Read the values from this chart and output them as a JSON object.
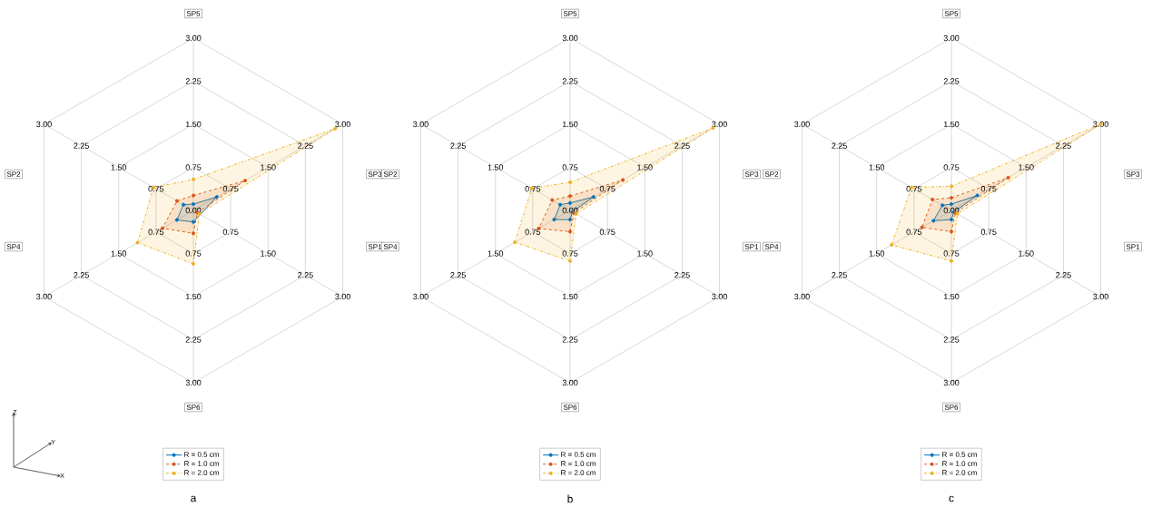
{
  "chart_data": [
    {
      "type": "radar",
      "title": "a",
      "categories": [
        "SP5",
        "SP3",
        "SP1",
        "SP6",
        "SP4",
        "SP2"
      ],
      "ylim": [
        0,
        3
      ],
      "yticks": [
        {
          "value": 0,
          "label": "0.00"
        },
        {
          "value": 0.75,
          "label": "0.75"
        },
        {
          "value": 1.5,
          "label": "1.50"
        },
        {
          "value": 2.25,
          "label": "2.25"
        },
        {
          "value": 3,
          "label": "3.00"
        }
      ],
      "grid": true,
      "legend": "bottom",
      "marker": "circle",
      "annotations": [
        "Z",
        "Y",
        "X"
      ],
      "series": [
        {
          "name": "R = 0.5 cm",
          "color": "#0072bd",
          "line_style": "solid",
          "values": [
            0.11,
            0.47,
            null,
            0.2,
            0.33,
            0.2
          ]
        },
        {
          "name": "R = 1.0 cm",
          "color": "#d95319",
          "line_style": "dashed",
          "values": [
            0.26,
            1.04,
            0.08,
            0.4,
            0.62,
            0.33
          ]
        },
        {
          "name": "R = 2.0 cm",
          "color": "#edb120",
          "line_style": "dotted",
          "values": [
            0.54,
            2.85,
            0.12,
            0.93,
            1.12,
            0.8
          ]
        }
      ]
    },
    {
      "type": "radar",
      "title": "b",
      "categories": [
        "SP5",
        "SP3",
        "SP1",
        "SP6",
        "SP4",
        "SP2"
      ],
      "ylim": [
        0,
        3
      ],
      "yticks": [
        {
          "value": 0,
          "label": "0.00"
        },
        {
          "value": 0.75,
          "label": "0.75"
        },
        {
          "value": 1.5,
          "label": "1.50"
        },
        {
          "value": 2.25,
          "label": "2.25"
        },
        {
          "value": 3,
          "label": "3.00"
        }
      ],
      "grid": true,
      "legend": "bottom",
      "marker": "circle",
      "series": [
        {
          "name": "R = 0.5 cm",
          "color": "#0072bd",
          "line_style": "solid",
          "values": [
            0.13,
            0.47,
            0.05,
            0.16,
            0.32,
            0.2
          ]
        },
        {
          "name": "R = 1.0 cm",
          "color": "#d95319",
          "line_style": "dashed",
          "values": [
            0.25,
            1.06,
            0.08,
            0.37,
            0.63,
            0.36
          ]
        },
        {
          "name": "R = 2.0 cm",
          "color": "#edb120",
          "line_style": "dotted",
          "values": [
            0.49,
            2.87,
            0.12,
            0.88,
            1.11,
            0.77
          ]
        }
      ]
    },
    {
      "type": "radar",
      "title": "c",
      "categories": [
        "SP5",
        "SP3",
        "SP1",
        "SP6",
        "SP4",
        "SP2"
      ],
      "ylim": [
        0,
        3
      ],
      "yticks": [
        {
          "value": 0,
          "label": "0.00"
        },
        {
          "value": 0.75,
          "label": "0.75"
        },
        {
          "value": 1.5,
          "label": "1.50"
        },
        {
          "value": 2.25,
          "label": "2.25"
        },
        {
          "value": 3,
          "label": "3.00"
        }
      ],
      "grid": true,
      "legend": "bottom",
      "marker": "circle",
      "series": [
        {
          "name": "R = 0.5 cm",
          "color": "#0072bd",
          "line_style": "solid",
          "values": [
            0.11,
            0.52,
            0.05,
            0.16,
            0.36,
            0.18
          ]
        },
        {
          "name": "R = 1.0 cm",
          "color": "#d95319",
          "line_style": "dashed",
          "values": [
            0.22,
            1.14,
            0.08,
            0.37,
            0.59,
            0.38
          ]
        },
        {
          "name": "R = 2.0 cm",
          "color": "#edb120",
          "line_style": "dotted",
          "values": [
            0.42,
            3.0,
            0.12,
            0.88,
            1.2,
            0.8
          ]
        }
      ]
    }
  ]
}
